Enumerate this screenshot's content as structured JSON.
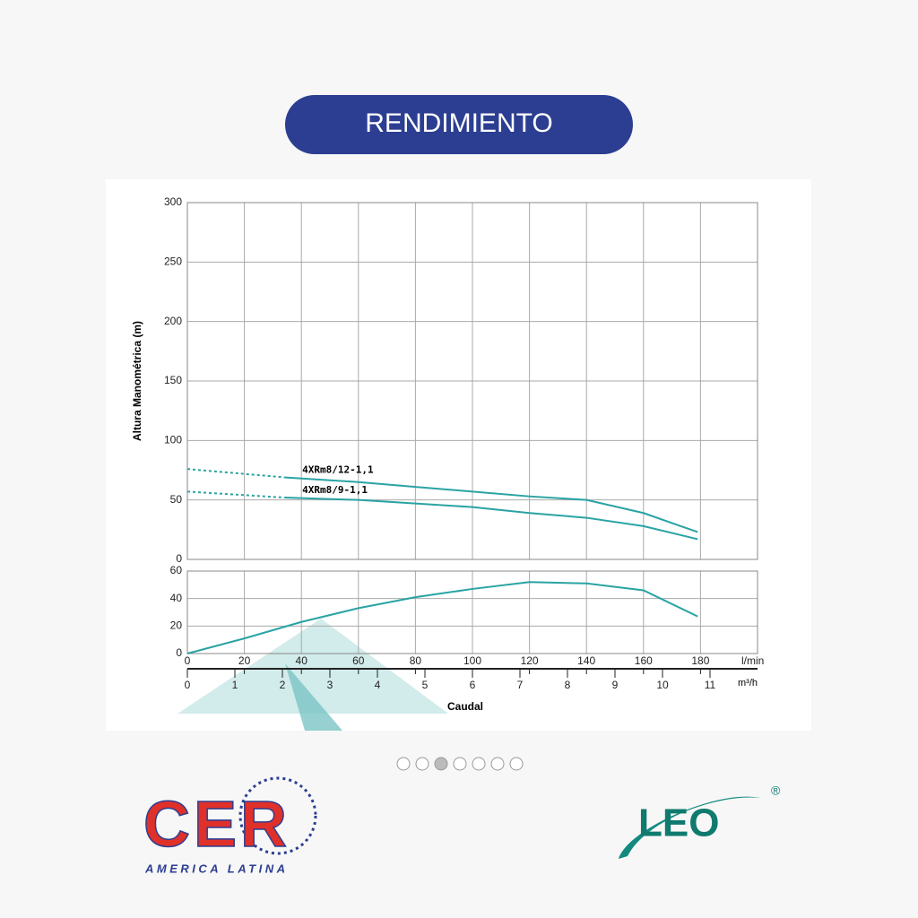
{
  "header": {
    "title": "RENDIMIENTO"
  },
  "chart_data": [
    {
      "type": "line",
      "ylabel": "Altura Manométrica (m)",
      "ylim": [
        0,
        300
      ],
      "yticks": [
        0,
        50,
        100,
        150,
        200,
        250,
        300
      ],
      "xlim": [
        0,
        200
      ],
      "grid": true,
      "series": [
        {
          "name": "4XRm8/12-1,1",
          "color": "#2aa3a3",
          "style": "solid",
          "x": [
            34,
            60,
            80,
            100,
            120,
            140,
            160,
            179
          ],
          "values": [
            69,
            65,
            61,
            57,
            53,
            50,
            39,
            23
          ]
        },
        {
          "name": "4XRm8/9-1,1",
          "color": "#2aa3a3",
          "style": "solid",
          "x": [
            34,
            60,
            80,
            100,
            120,
            140,
            160,
            179
          ],
          "values": [
            52,
            50,
            47,
            44,
            39,
            35,
            28,
            17
          ]
        },
        {
          "color": "#2aa3a3",
          "style": "dotted",
          "x": [
            0,
            34
          ],
          "values": [
            76,
            69
          ]
        },
        {
          "color": "#2aa3a3",
          "style": "dotted",
          "x": [
            0,
            34
          ],
          "values": [
            57,
            52
          ]
        }
      ]
    },
    {
      "type": "line",
      "xlabel": "Caudal",
      "xunit": "l/min",
      "x2unit": "m³/h",
      "ylim": [
        0,
        60
      ],
      "yticks": [
        0,
        20,
        40,
        60
      ],
      "grid": true,
      "xlim": [
        0,
        200
      ],
      "xticks": [
        0,
        20,
        40,
        60,
        80,
        100,
        120,
        140,
        160,
        180
      ],
      "x2lim": [
        0,
        12
      ],
      "x2ticks": [
        0,
        1,
        2,
        3,
        4,
        5,
        6,
        7,
        8,
        9,
        10,
        11
      ],
      "series": [
        {
          "color": "#2aa3a3",
          "style": "solid",
          "x": [
            0,
            20,
            40,
            60,
            80,
            100,
            120,
            140,
            160,
            179
          ],
          "values": [
            0,
            11,
            23,
            33,
            41,
            47,
            52,
            51,
            46,
            27
          ]
        }
      ]
    }
  ],
  "footer": {
    "brand_left": "CER",
    "brand_left_sub": "AMERICA LATINA",
    "brand_right": "LEO",
    "brand_right_mark": "®"
  }
}
